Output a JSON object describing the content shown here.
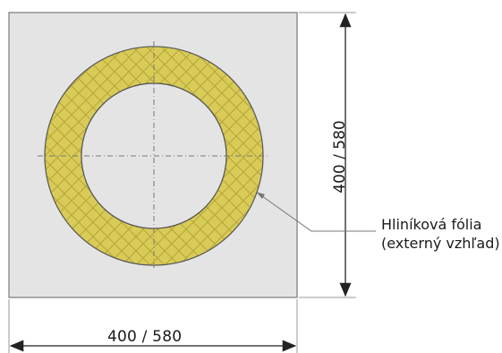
{
  "dimensions": {
    "width_label": "400 / 580",
    "height_label": "400 / 580"
  },
  "callout": {
    "line1": "Hliníková fólia",
    "line2": "(externý vzhľad)"
  },
  "colors": {
    "square_fill": "#e4e4e4",
    "square_stroke": "#7a7a7a",
    "insulation_fill": "#d9cb57",
    "insulation_hatch": "#b5a63a",
    "dimension_line": "#222222"
  }
}
